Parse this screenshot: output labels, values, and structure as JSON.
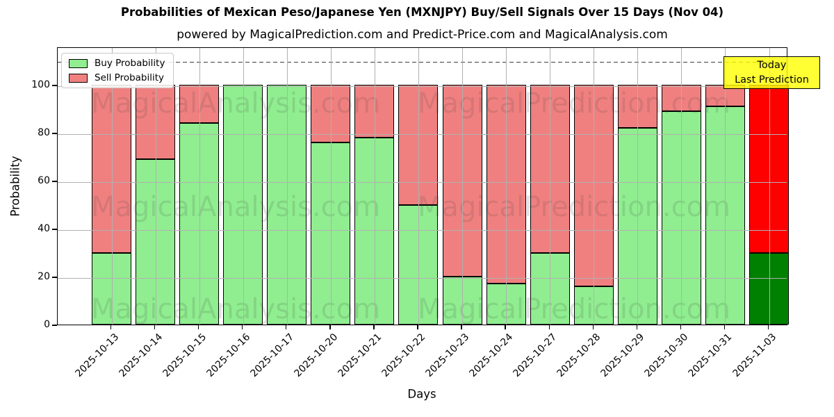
{
  "chart_data": {
    "type": "bar",
    "stacked": true,
    "title": "Probabilities of Mexican Peso/Japanese Yen (MXNJPY) Buy/Sell Signals Over 15 Days (Nov 04)",
    "subtitle": "powered by MagicalPrediction.com and Predict-Price.com and MagicalAnalysis.com",
    "xlabel": "Days",
    "ylabel": "Probability",
    "ylim": [
      0,
      116
    ],
    "yticks": [
      0,
      20,
      40,
      60,
      80,
      100
    ],
    "grid": true,
    "dashed_line_y": 110,
    "categories": [
      "2025-10-13",
      "2025-10-14",
      "2025-10-15",
      "2025-10-16",
      "2025-10-17",
      "2025-10-20",
      "2025-10-21",
      "2025-10-22",
      "2025-10-23",
      "2025-10-24",
      "2025-10-27",
      "2025-10-28",
      "2025-10-29",
      "2025-10-30",
      "2025-10-31",
      "2025-11-03"
    ],
    "series": [
      {
        "name": "Buy Probability",
        "values": [
          30,
          69,
          84,
          100,
          100,
          76,
          78,
          50,
          20,
          17,
          30,
          16,
          82,
          89,
          91,
          30
        ]
      },
      {
        "name": "Sell Probability",
        "values": [
          70,
          31,
          16,
          0,
          0,
          24,
          22,
          50,
          80,
          83,
          70,
          84,
          18,
          11,
          9,
          70
        ]
      }
    ],
    "legend": {
      "position": "upper left",
      "entries": [
        {
          "label": "Buy Probability",
          "color": "#90ee90"
        },
        {
          "label": "Sell Probability",
          "color": "#f08080"
        }
      ]
    },
    "bar_colors": {
      "buy_default": "#90ee90",
      "sell_default": "#f08080",
      "last_buy": "#008000",
      "last_sell": "#ff0000",
      "edge": "#000000"
    },
    "annotation": {
      "lines": [
        "Today",
        "Last Prediction"
      ],
      "bg": "#ffff00",
      "border": "#000000"
    },
    "watermarks": [
      "MagicalAnalysis.com",
      "MagicalPrediction.com"
    ]
  }
}
